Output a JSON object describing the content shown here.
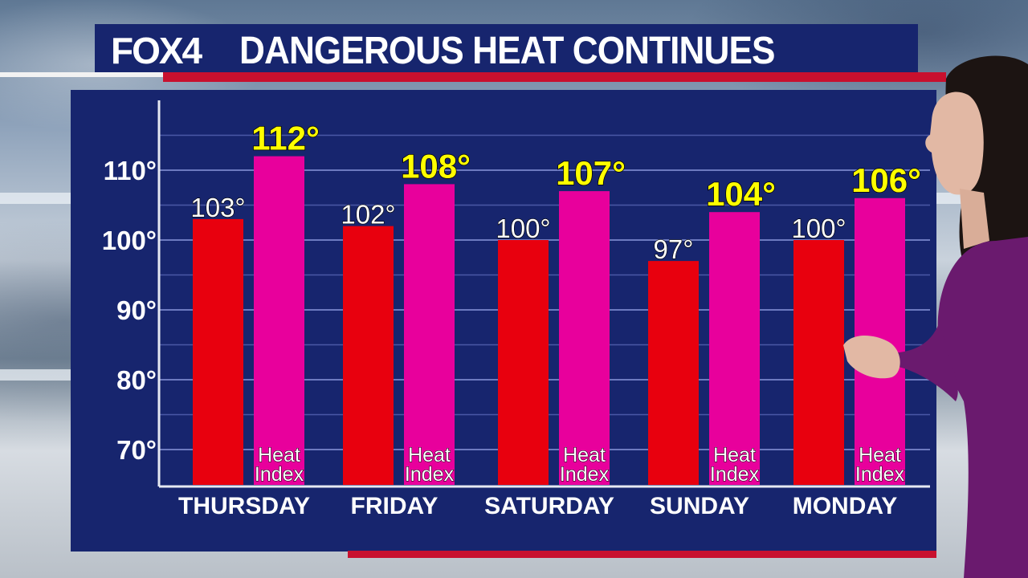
{
  "header": {
    "logo": "FOX4",
    "title": "DANGEROUS HEAT CONTINUES"
  },
  "colors": {
    "temp_bar": "#e8000e",
    "heat_index_bar": "#e8009c",
    "panel": "#17256e",
    "accent_red": "#c8102e",
    "heat_index_text": "#ffff00"
  },
  "chart_data": {
    "type": "bar",
    "categories": [
      "THURSDAY",
      "FRIDAY",
      "SATURDAY",
      "SUNDAY",
      "MONDAY"
    ],
    "series": [
      {
        "values": [
          103,
          102,
          100,
          97,
          100
        ],
        "labels": [
          "103°",
          "102°",
          "100°",
          "97°",
          "100°"
        ]
      },
      {
        "name": "Heat Index",
        "values": [
          112,
          108,
          107,
          104,
          106
        ],
        "labels": [
          "112°",
          "108°",
          "107°",
          "104°",
          "106°"
        ]
      }
    ],
    "yticks": [
      "70°",
      "80°",
      "90°",
      "100°",
      "110°"
    ],
    "ytick_values": [
      70,
      80,
      90,
      100,
      110
    ],
    "ylim": [
      65,
      120
    ],
    "grid": true,
    "bar_caption_line1": "Heat",
    "bar_caption_line2": "Index"
  }
}
